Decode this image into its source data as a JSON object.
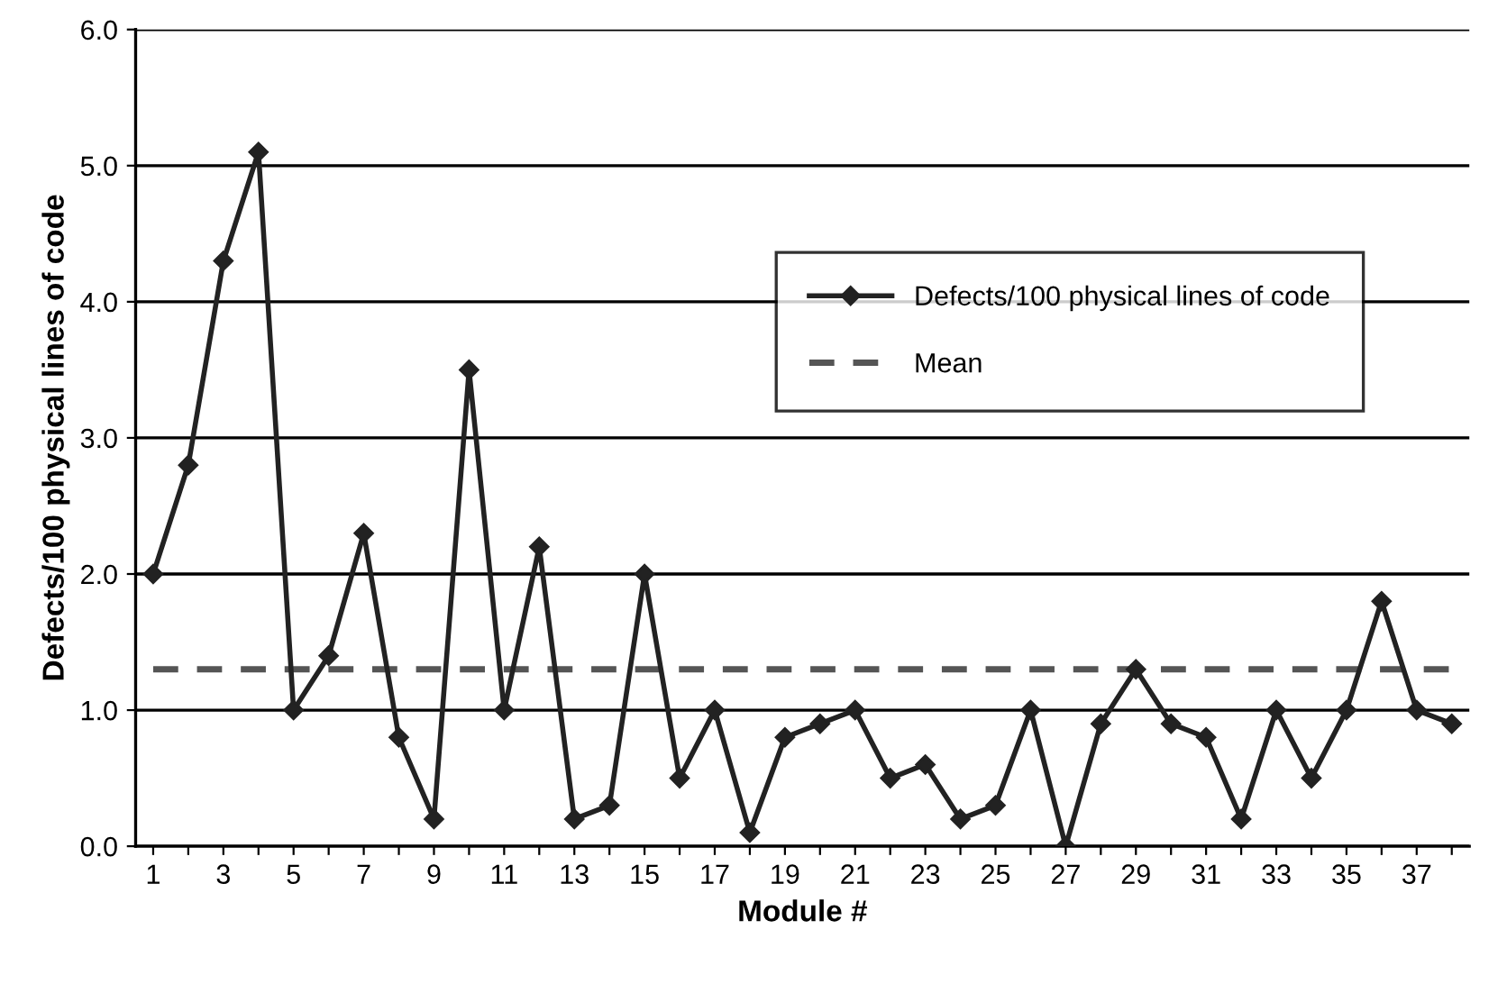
{
  "chart_data": {
    "type": "line",
    "xlabel": "Module #",
    "ylabel": "Defects/100 physical lines of code",
    "categories": [
      "1",
      null,
      "3",
      null,
      "5",
      null,
      "7",
      null,
      "9",
      null,
      "11",
      null,
      "13",
      null,
      "15",
      null,
      "17",
      null,
      "19",
      null,
      "21",
      null,
      "23",
      null,
      "25",
      null,
      "27",
      null,
      "29",
      null,
      "31",
      null,
      "33",
      null,
      "35",
      null,
      "37",
      null
    ],
    "series": [
      {
        "name": "Defects/100 physical lines of code",
        "color": "#222222",
        "marker": "diamond",
        "line_style": "solid",
        "values": [
          2.0,
          2.8,
          4.3,
          5.1,
          1.0,
          1.4,
          2.3,
          0.8,
          0.2,
          3.5,
          1.0,
          2.2,
          0.2,
          0.3,
          2.0,
          0.5,
          1.0,
          0.1,
          0.8,
          0.9,
          1.0,
          0.5,
          0.6,
          0.2,
          0.3,
          1.0,
          0.0,
          0.9,
          1.3,
          0.9,
          0.8,
          0.2,
          1.0,
          0.5,
          1.0,
          1.8,
          1.0,
          0.9
        ]
      },
      {
        "name": "Mean",
        "color": "#555555",
        "marker": "none",
        "line_style": "dashed",
        "values": [
          1.3,
          1.3,
          1.3,
          1.3,
          1.3,
          1.3,
          1.3,
          1.3,
          1.3,
          1.3,
          1.3,
          1.3,
          1.3,
          1.3,
          1.3,
          1.3,
          1.3,
          1.3,
          1.3,
          1.3,
          1.3,
          1.3,
          1.3,
          1.3,
          1.3,
          1.3,
          1.3,
          1.3,
          1.3,
          1.3,
          1.3,
          1.3,
          1.3,
          1.3,
          1.3,
          1.3,
          1.3,
          1.3
        ]
      }
    ],
    "ylim": [
      0,
      6
    ],
    "yticks": [
      {
        "value": 0,
        "label": "0.0"
      },
      {
        "value": 1,
        "label": "1.0"
      },
      {
        "value": 2,
        "label": "2.0"
      },
      {
        "value": 3,
        "label": "3.0"
      },
      {
        "value": 4,
        "label": "4.0"
      },
      {
        "value": 5,
        "label": "5.0"
      },
      {
        "value": 6,
        "label": "6.0"
      }
    ],
    "grid": "y",
    "legend": "right"
  }
}
